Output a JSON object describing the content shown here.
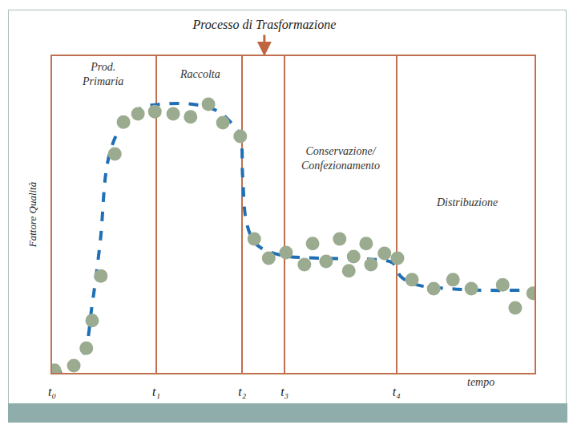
{
  "chart_data": {
    "type": "scatter",
    "title": "Processo di Trasformazione",
    "x_label": "tempo",
    "y_label": "Fattore Qualità",
    "xlim": [
      0,
      100
    ],
    "ylim": [
      0,
      100
    ],
    "xticks": [
      {
        "value": 0,
        "label": "t₀"
      },
      {
        "value": 21.6,
        "label": "t₁"
      },
      {
        "value": 39.4,
        "label": "t₂"
      },
      {
        "value": 48.2,
        "label": "t₃"
      },
      {
        "value": 71.4,
        "label": "t₄"
      }
    ],
    "yticks": [],
    "tick_labels": "x",
    "grid": true,
    "annotations": [
      {
        "text": "Prod.\nPrimaria"
      },
      {
        "text": "Raccolta"
      },
      {
        "text": "Conservazione/\nConfezionamento"
      },
      {
        "text": "Distribuzione"
      }
    ],
    "series": [
      {
        "type": "scatter",
        "marker": "circle",
        "color": "#9aab8f",
        "x": [
          0.5,
          4.5,
          7.1,
          8.3,
          10.1,
          13.0,
          14.8,
          17.8,
          21.3,
          25.1,
          28.7,
          32.4,
          35.4,
          39.0,
          41.9,
          44.9,
          48.5,
          52.3,
          54.0,
          56.8,
          59.6,
          61.5,
          62.5,
          65.1,
          66.1,
          68.9,
          71.6,
          74.6,
          79.1,
          83.1,
          86.9,
          93.4,
          96.0,
          99.7
        ],
        "values": [
          0.8,
          2.3,
          7.8,
          16.5,
          30.6,
          69.1,
          79.2,
          81.8,
          82.5,
          81.8,
          80.8,
          84.8,
          79.0,
          74.7,
          42.3,
          36.2,
          38.0,
          34.2,
          40.8,
          35.2,
          42.3,
          32.2,
          36.7,
          40.8,
          34.2,
          37.7,
          36.2,
          29.4,
          26.6,
          29.4,
          26.6,
          27.8,
          20.5,
          25.1
        ]
      },
      {
        "type": "line",
        "line_style": "dash",
        "color": "#1f6fb5",
        "x": [
          0,
          3.8,
          6.6,
          8.3,
          10.0,
          11.6,
          14.1,
          18.3,
          22.4,
          29.1,
          34.1,
          37.4,
          39.0,
          39.5,
          40.4,
          42.4,
          47.3,
          55.6,
          65.6,
          70.6,
          72.3,
          75.6,
          82.2,
          88.9,
          100
        ],
        "values": [
          0,
          1.3,
          6.3,
          21.5,
          41.8,
          67.1,
          77.2,
          83.5,
          84.8,
          84.8,
          82.8,
          78.5,
          74.7,
          62.0,
          46.8,
          40.5,
          37.2,
          36.2,
          35.9,
          34.7,
          30.4,
          27.8,
          26.6,
          26.1,
          26.1
        ]
      }
    ]
  }
}
